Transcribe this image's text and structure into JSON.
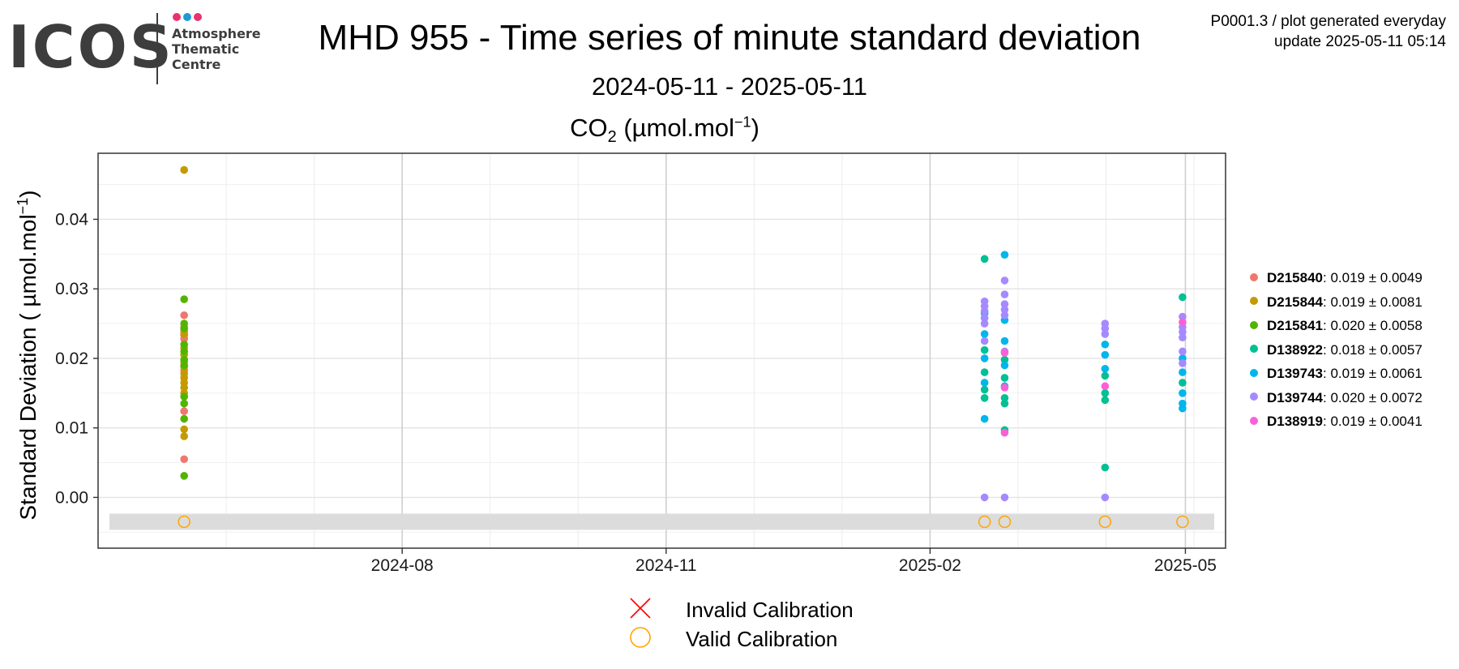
{
  "header": {
    "logo": {
      "word": "ICOS",
      "line1": "Atmosphere",
      "line2": "Thematic",
      "line3": "Centre",
      "dot_colors": [
        "#e8336d",
        "#1e9ad6",
        "#e8336d"
      ]
    },
    "title": "MHD 955 - Time series of minute standard deviation",
    "subtitle": "2024-05-11 - 2025-05-11",
    "plot_title_prefix": "CO",
    "plot_title_subscript": "2",
    "plot_title_unit": " (µmol.mol",
    "plot_title_sup": "−1",
    "plot_title_close": ")",
    "meta_line1": "P0001.3 / plot generated everyday",
    "meta_line2": "update  2025-05-11 05:14"
  },
  "legend": [
    {
      "name": "D215840",
      "text": ": 0.019 ± 0.0049",
      "color": "#f0776d"
    },
    {
      "name": "D215844",
      "text": ": 0.019 ± 0.0081",
      "color": "#c49a00"
    },
    {
      "name": "D215841",
      "text": ": 0.020 ± 0.0058",
      "color": "#53b400"
    },
    {
      "name": "D138922",
      "text": ": 0.018 ± 0.0057",
      "color": "#00c094"
    },
    {
      "name": "D139743",
      "text": ": 0.019 ± 0.0061",
      "color": "#00b6eb"
    },
    {
      "name": "D139744",
      "text": ": 0.020 ± 0.0072",
      "color": "#a58aff"
    },
    {
      "name": "D138919",
      "text": ": 0.019 ± 0.0041",
      "color": "#fb61d7"
    }
  ],
  "calibration_legend": {
    "invalid_label": "Invalid Calibration",
    "valid_label": "Valid Calibration",
    "invalid_color": "#ff0000",
    "valid_color": "#ffa500"
  },
  "chart_data": {
    "type": "scatter",
    "title": "CO2 (µmol.mol-1)",
    "xlabel": "",
    "ylabel": "Standard Deviation ( µmol.mol",
    "ylabel_sup": "−1",
    "ylabel_close": ")",
    "x_type": "date",
    "xlim": [
      "2024-04-17",
      "2025-05-15"
    ],
    "ylim": [
      -0.0073,
      0.0495
    ],
    "x_ticks": [
      "2024-08-01",
      "2024-11-01",
      "2025-02-01",
      "2025-05-01"
    ],
    "x_tick_labels": [
      "2024-08",
      "2024-11",
      "2025-02",
      "2025-05"
    ],
    "y_ticks": [
      0.0,
      0.01,
      0.02,
      0.03,
      0.04
    ],
    "y_tick_labels": [
      "0.00",
      "0.01",
      "0.02",
      "0.03",
      "0.04"
    ],
    "grid": true,
    "legend_position": "right",
    "calibration_band_y": -0.0035,
    "calibration_points": [
      {
        "x": "2024-05-17",
        "status": "Valid Calibration"
      },
      {
        "x": "2025-02-20",
        "status": "Valid Calibration"
      },
      {
        "x": "2025-02-27",
        "status": "Valid Calibration"
      },
      {
        "x": "2025-04-03",
        "status": "Valid Calibration"
      },
      {
        "x": "2025-04-30",
        "status": "Valid Calibration"
      }
    ],
    "series": [
      {
        "name": "D215840",
        "points": [
          [
            "2024-05-17",
            0.0262
          ],
          [
            "2024-05-17",
            0.0245
          ],
          [
            "2024-05-17",
            0.0239
          ],
          [
            "2024-05-17",
            0.0233
          ],
          [
            "2024-05-17",
            0.0228
          ],
          [
            "2024-05-17",
            0.0195
          ],
          [
            "2024-05-17",
            0.0183
          ],
          [
            "2024-05-17",
            0.0124
          ],
          [
            "2024-05-17",
            0.0055
          ]
        ]
      },
      {
        "name": "D215844",
        "points": [
          [
            "2024-05-17",
            0.0471
          ],
          [
            "2024-05-17",
            0.0235
          ],
          [
            "2024-05-17",
            0.0215
          ],
          [
            "2024-05-17",
            0.0205
          ],
          [
            "2024-05-17",
            0.0188
          ],
          [
            "2024-05-17",
            0.0178
          ],
          [
            "2024-05-17",
            0.0172
          ],
          [
            "2024-05-17",
            0.0165
          ],
          [
            "2024-05-17",
            0.0158
          ],
          [
            "2024-05-17",
            0.015
          ],
          [
            "2024-05-17",
            0.0098
          ],
          [
            "2024-05-17",
            0.0088
          ]
        ]
      },
      {
        "name": "D215841",
        "points": [
          [
            "2024-05-17",
            0.0285
          ],
          [
            "2024-05-17",
            0.025
          ],
          [
            "2024-05-17",
            0.0243
          ],
          [
            "2024-05-17",
            0.022
          ],
          [
            "2024-05-17",
            0.021
          ],
          [
            "2024-05-17",
            0.0198
          ],
          [
            "2024-05-17",
            0.019
          ],
          [
            "2024-05-17",
            0.0145
          ],
          [
            "2024-05-17",
            0.0135
          ],
          [
            "2024-05-17",
            0.0113
          ],
          [
            "2024-05-17",
            0.0031
          ]
        ]
      },
      {
        "name": "D138922",
        "points": [
          [
            "2025-02-20",
            0.0343
          ],
          [
            "2025-02-20",
            0.0212
          ],
          [
            "2025-02-20",
            0.018
          ],
          [
            "2025-02-20",
            0.0155
          ],
          [
            "2025-02-20",
            0.0143
          ],
          [
            "2025-02-27",
            0.0198
          ],
          [
            "2025-02-27",
            0.0172
          ],
          [
            "2025-02-27",
            0.0143
          ],
          [
            "2025-02-27",
            0.0135
          ],
          [
            "2025-02-27",
            0.0097
          ],
          [
            "2025-04-03",
            0.0175
          ],
          [
            "2025-04-03",
            0.015
          ],
          [
            "2025-04-03",
            0.014
          ],
          [
            "2025-04-03",
            0.0043
          ],
          [
            "2025-04-30",
            0.0288
          ],
          [
            "2025-04-30",
            0.0165
          ]
        ]
      },
      {
        "name": "D139743",
        "points": [
          [
            "2025-02-20",
            0.0265
          ],
          [
            "2025-02-20",
            0.0235
          ],
          [
            "2025-02-20",
            0.02
          ],
          [
            "2025-02-20",
            0.0165
          ],
          [
            "2025-02-20",
            0.0113
          ],
          [
            "2025-02-27",
            0.0349
          ],
          [
            "2025-02-27",
            0.0255
          ],
          [
            "2025-02-27",
            0.0225
          ],
          [
            "2025-02-27",
            0.019
          ],
          [
            "2025-02-27",
            0.016
          ],
          [
            "2025-04-03",
            0.022
          ],
          [
            "2025-04-03",
            0.0205
          ],
          [
            "2025-04-03",
            0.0185
          ],
          [
            "2025-04-30",
            0.02
          ],
          [
            "2025-04-30",
            0.018
          ],
          [
            "2025-04-30",
            0.015
          ],
          [
            "2025-04-30",
            0.0135
          ],
          [
            "2025-04-30",
            0.0128
          ]
        ]
      },
      {
        "name": "D139744",
        "points": [
          [
            "2025-02-20",
            0.0282
          ],
          [
            "2025-02-20",
            0.0275
          ],
          [
            "2025-02-20",
            0.0268
          ],
          [
            "2025-02-20",
            0.0258
          ],
          [
            "2025-02-20",
            0.025
          ],
          [
            "2025-02-20",
            0.0225
          ],
          [
            "2025-02-20",
            0.0
          ],
          [
            "2025-02-27",
            0.0312
          ],
          [
            "2025-02-27",
            0.0292
          ],
          [
            "2025-02-27",
            0.0278
          ],
          [
            "2025-02-27",
            0.027
          ],
          [
            "2025-02-27",
            0.0262
          ],
          [
            "2025-02-27",
            0.021
          ],
          [
            "2025-02-27",
            0.0
          ],
          [
            "2025-04-03",
            0.025
          ],
          [
            "2025-04-03",
            0.0243
          ],
          [
            "2025-04-03",
            0.0235
          ],
          [
            "2025-04-03",
            0.0
          ],
          [
            "2025-04-30",
            0.026
          ],
          [
            "2025-04-30",
            0.0245
          ],
          [
            "2025-04-30",
            0.0238
          ],
          [
            "2025-04-30",
            0.023
          ],
          [
            "2025-04-30",
            0.021
          ],
          [
            "2025-04-30",
            0.0193
          ]
        ]
      },
      {
        "name": "D138919",
        "points": [
          [
            "2025-02-27",
            0.0208
          ],
          [
            "2025-02-27",
            0.0158
          ],
          [
            "2025-02-27",
            0.0093
          ],
          [
            "2025-04-03",
            0.016
          ],
          [
            "2025-04-30",
            0.0252
          ]
        ]
      }
    ]
  }
}
